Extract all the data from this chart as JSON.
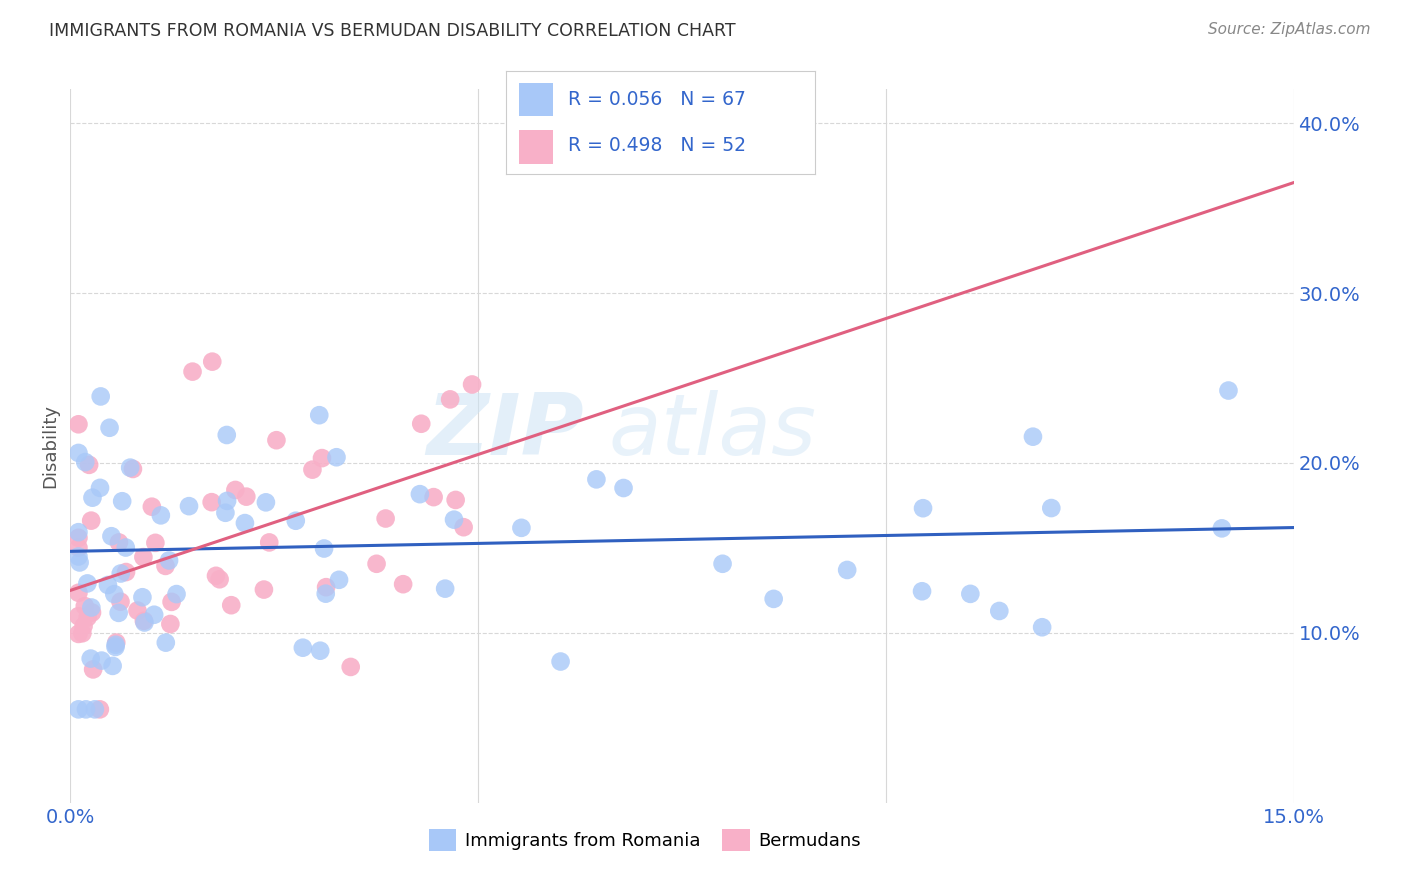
{
  "title": "IMMIGRANTS FROM ROMANIA VS BERMUDAN DISABILITY CORRELATION CHART",
  "source": "Source: ZipAtlas.com",
  "ylabel": "Disability",
  "xlim": [
    0.0,
    0.15
  ],
  "ylim": [
    0.0,
    0.42
  ],
  "yticks": [
    0.1,
    0.2,
    0.3,
    0.4
  ],
  "ytick_labels": [
    "10.0%",
    "20.0%",
    "30.0%",
    "40.0%"
  ],
  "blue_R": 0.056,
  "blue_N": 67,
  "pink_R": 0.498,
  "pink_N": 52,
  "blue_color": "#a8c8f8",
  "pink_color": "#f8b0c8",
  "blue_line_color": "#3060c0",
  "pink_line_color": "#e06080",
  "watermark_zip": "ZIP",
  "watermark_atlas": "atlas",
  "background_color": "#ffffff",
  "grid_color": "#d8d8d8",
  "legend_text_color": "#3366cc",
  "title_color": "#333333",
  "source_color": "#888888",
  "blue_line_x0": 0.0,
  "blue_line_y0": 0.148,
  "blue_line_x1": 0.15,
  "blue_line_y1": 0.162,
  "pink_line_x0": 0.0,
  "pink_line_y0": 0.125,
  "pink_line_x1": 0.15,
  "pink_line_y1": 0.365
}
